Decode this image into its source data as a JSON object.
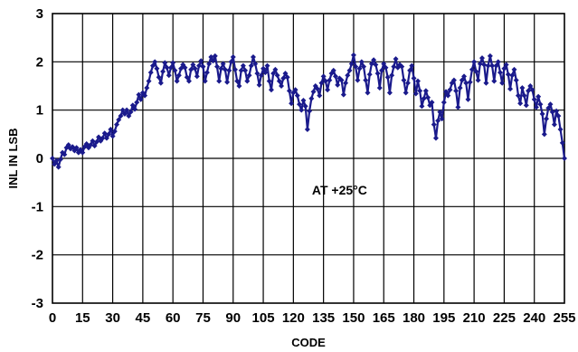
{
  "chart_data": {
    "type": "line",
    "title": "",
    "xlabel": "CODE",
    "ylabel": "INL IN LSB",
    "xlim": [
      0,
      255
    ],
    "ylim": [
      -3,
      3
    ],
    "grid": true,
    "xticks": [
      0,
      15,
      30,
      45,
      60,
      75,
      90,
      105,
      120,
      135,
      150,
      165,
      180,
      195,
      210,
      225,
      240,
      255
    ],
    "yticks": [
      3,
      2,
      1,
      0,
      -1,
      -2,
      -3
    ],
    "annotation": "AT +25°C",
    "colors": {
      "series": "#1a1a8c",
      "grid": "#000000"
    },
    "series": [
      {
        "marker": "diamond",
        "points": [
          [
            0,
            0.0
          ],
          [
            1,
            -0.12
          ],
          [
            2,
            -0.05
          ],
          [
            3,
            -0.18
          ],
          [
            4,
            -0.02
          ],
          [
            5,
            0.12
          ],
          [
            6,
            0.08
          ],
          [
            7,
            0.22
          ],
          [
            8,
            0.28
          ],
          [
            9,
            0.2
          ],
          [
            10,
            0.24
          ],
          [
            11,
            0.16
          ],
          [
            12,
            0.22
          ],
          [
            13,
            0.12
          ],
          [
            14,
            0.18
          ],
          [
            15,
            0.12
          ],
          [
            16,
            0.24
          ],
          [
            17,
            0.3
          ],
          [
            18,
            0.22
          ],
          [
            19,
            0.28
          ],
          [
            20,
            0.36
          ],
          [
            21,
            0.26
          ],
          [
            22,
            0.34
          ],
          [
            23,
            0.44
          ],
          [
            24,
            0.36
          ],
          [
            25,
            0.42
          ],
          [
            26,
            0.52
          ],
          [
            27,
            0.42
          ],
          [
            28,
            0.5
          ],
          [
            29,
            0.6
          ],
          [
            30,
            0.46
          ],
          [
            31,
            0.56
          ],
          [
            32,
            0.7
          ],
          [
            33,
            0.8
          ],
          [
            34,
            0.88
          ],
          [
            35,
            1.0
          ],
          [
            36,
            0.92
          ],
          [
            37,
            1.0
          ],
          [
            38,
            0.88
          ],
          [
            39,
            0.96
          ],
          [
            40,
            1.1
          ],
          [
            41,
            1.02
          ],
          [
            42,
            1.16
          ],
          [
            43,
            1.32
          ],
          [
            44,
            1.22
          ],
          [
            45,
            1.36
          ],
          [
            46,
            1.3
          ],
          [
            47,
            1.46
          ],
          [
            48,
            1.6
          ],
          [
            49,
            1.78
          ],
          [
            50,
            1.92
          ],
          [
            51,
            2.0
          ],
          [
            52,
            1.86
          ],
          [
            53,
            1.68
          ],
          [
            54,
            1.56
          ],
          [
            55,
            1.8
          ],
          [
            56,
            1.98
          ],
          [
            57,
            1.88
          ],
          [
            58,
            1.72
          ],
          [
            59,
            1.88
          ],
          [
            60,
            1.98
          ],
          [
            61,
            1.82
          ],
          [
            62,
            1.6
          ],
          [
            63,
            1.72
          ],
          [
            64,
            1.86
          ],
          [
            65,
            1.94
          ],
          [
            66,
            1.88
          ],
          [
            67,
            1.68
          ],
          [
            68,
            1.6
          ],
          [
            69,
            1.84
          ],
          [
            70,
            1.94
          ],
          [
            71,
            1.86
          ],
          [
            72,
            1.7
          ],
          [
            73,
            1.92
          ],
          [
            74,
            2.02
          ],
          [
            75,
            1.9
          ],
          [
            76,
            1.6
          ],
          [
            77,
            1.78
          ],
          [
            78,
            1.96
          ],
          [
            79,
            2.1
          ],
          [
            80,
            2.02
          ],
          [
            81,
            2.12
          ],
          [
            82,
            1.9
          ],
          [
            83,
            1.6
          ],
          [
            84,
            1.86
          ],
          [
            85,
            1.96
          ],
          [
            86,
            1.84
          ],
          [
            87,
            1.58
          ],
          [
            88,
            1.82
          ],
          [
            89,
            2.0
          ],
          [
            90,
            2.1
          ],
          [
            91,
            1.84
          ],
          [
            92,
            1.6
          ],
          [
            93,
            1.5
          ],
          [
            94,
            1.82
          ],
          [
            95,
            1.92
          ],
          [
            96,
            1.82
          ],
          [
            97,
            1.6
          ],
          [
            98,
            1.72
          ],
          [
            99,
            1.92
          ],
          [
            100,
            2.1
          ],
          [
            101,
            1.96
          ],
          [
            102,
            1.76
          ],
          [
            103,
            1.52
          ],
          [
            104,
            1.72
          ],
          [
            105,
            1.86
          ],
          [
            106,
            1.78
          ],
          [
            107,
            1.92
          ],
          [
            108,
            1.6
          ],
          [
            109,
            1.42
          ],
          [
            110,
            1.76
          ],
          [
            111,
            1.84
          ],
          [
            112,
            1.72
          ],
          [
            113,
            1.6
          ],
          [
            114,
            1.5
          ],
          [
            115,
            1.66
          ],
          [
            116,
            1.76
          ],
          [
            117,
            1.68
          ],
          [
            118,
            1.4
          ],
          [
            119,
            1.14
          ],
          [
            120,
            1.36
          ],
          [
            121,
            1.42
          ],
          [
            122,
            1.3
          ],
          [
            123,
            1.12
          ],
          [
            124,
            1.0
          ],
          [
            125,
            1.2
          ],
          [
            126,
            1.08
          ],
          [
            127,
            0.6
          ],
          [
            128,
            0.98
          ],
          [
            129,
            1.24
          ],
          [
            130,
            1.38
          ],
          [
            131,
            1.5
          ],
          [
            132,
            1.44
          ],
          [
            133,
            1.3
          ],
          [
            134,
            1.56
          ],
          [
            135,
            1.7
          ],
          [
            136,
            1.6
          ],
          [
            137,
            1.42
          ],
          [
            138,
            1.62
          ],
          [
            139,
            1.76
          ],
          [
            140,
            1.82
          ],
          [
            141,
            1.7
          ],
          [
            142,
            1.52
          ],
          [
            143,
            1.66
          ],
          [
            144,
            1.62
          ],
          [
            145,
            1.32
          ],
          [
            146,
            1.56
          ],
          [
            147,
            1.72
          ],
          [
            148,
            1.82
          ],
          [
            149,
            1.96
          ],
          [
            150,
            2.14
          ],
          [
            151,
            1.9
          ],
          [
            152,
            1.62
          ],
          [
            153,
            1.86
          ],
          [
            154,
            2.0
          ],
          [
            155,
            1.9
          ],
          [
            156,
            1.62
          ],
          [
            157,
            1.36
          ],
          [
            158,
            1.74
          ],
          [
            159,
            1.96
          ],
          [
            160,
            2.04
          ],
          [
            161,
            1.94
          ],
          [
            162,
            1.76
          ],
          [
            163,
            1.46
          ],
          [
            164,
            1.82
          ],
          [
            165,
            1.96
          ],
          [
            166,
            1.88
          ],
          [
            167,
            1.68
          ],
          [
            168,
            1.36
          ],
          [
            169,
            1.72
          ],
          [
            170,
            1.9
          ],
          [
            171,
            2.06
          ],
          [
            172,
            1.88
          ],
          [
            173,
            1.94
          ],
          [
            174,
            1.9
          ],
          [
            175,
            1.62
          ],
          [
            176,
            1.36
          ],
          [
            177,
            1.56
          ],
          [
            178,
            1.82
          ],
          [
            179,
            1.92
          ],
          [
            180,
            1.66
          ],
          [
            181,
            1.34
          ],
          [
            182,
            1.6
          ],
          [
            183,
            1.4
          ],
          [
            184,
            1.08
          ],
          [
            185,
            1.24
          ],
          [
            186,
            1.4
          ],
          [
            187,
            1.26
          ],
          [
            188,
            1.1
          ],
          [
            189,
            1.16
          ],
          [
            190,
            0.7
          ],
          [
            191,
            0.42
          ],
          [
            192,
            0.78
          ],
          [
            193,
            0.96
          ],
          [
            194,
            0.82
          ],
          [
            195,
            1.16
          ],
          [
            196,
            1.38
          ],
          [
            197,
            1.3
          ],
          [
            198,
            1.42
          ],
          [
            199,
            1.56
          ],
          [
            200,
            1.62
          ],
          [
            201,
            1.4
          ],
          [
            202,
            1.06
          ],
          [
            203,
            1.46
          ],
          [
            204,
            1.62
          ],
          [
            205,
            1.7
          ],
          [
            206,
            1.56
          ],
          [
            207,
            1.22
          ],
          [
            208,
            1.58
          ],
          [
            209,
            1.84
          ],
          [
            210,
            2.0
          ],
          [
            211,
            1.8
          ],
          [
            212,
            1.62
          ],
          [
            213,
            1.96
          ],
          [
            214,
            2.08
          ],
          [
            215,
            1.94
          ],
          [
            216,
            1.56
          ],
          [
            217,
            1.92
          ],
          [
            218,
            2.12
          ],
          [
            219,
            1.92
          ],
          [
            220,
            1.6
          ],
          [
            221,
            1.92
          ],
          [
            222,
            2.0
          ],
          [
            223,
            1.78
          ],
          [
            224,
            1.56
          ],
          [
            225,
            1.86
          ],
          [
            226,
            1.94
          ],
          [
            227,
            1.74
          ],
          [
            228,
            1.44
          ],
          [
            229,
            1.72
          ],
          [
            230,
            1.84
          ],
          [
            231,
            1.62
          ],
          [
            232,
            1.3
          ],
          [
            233,
            1.14
          ],
          [
            234,
            1.46
          ],
          [
            235,
            1.3
          ],
          [
            236,
            1.1
          ],
          [
            237,
            1.4
          ],
          [
            238,
            1.5
          ],
          [
            239,
            1.42
          ],
          [
            240,
            1.22
          ],
          [
            241,
            1.06
          ],
          [
            242,
            1.28
          ],
          [
            243,
            1.12
          ],
          [
            244,
            0.92
          ],
          [
            245,
            0.5
          ],
          [
            246,
            0.82
          ],
          [
            247,
            1.04
          ],
          [
            248,
            1.12
          ],
          [
            249,
            0.96
          ],
          [
            250,
            0.7
          ],
          [
            251,
            0.98
          ],
          [
            252,
            0.88
          ],
          [
            253,
            0.6
          ],
          [
            254,
            0.32
          ],
          [
            255,
            0.0
          ]
        ]
      }
    ]
  }
}
